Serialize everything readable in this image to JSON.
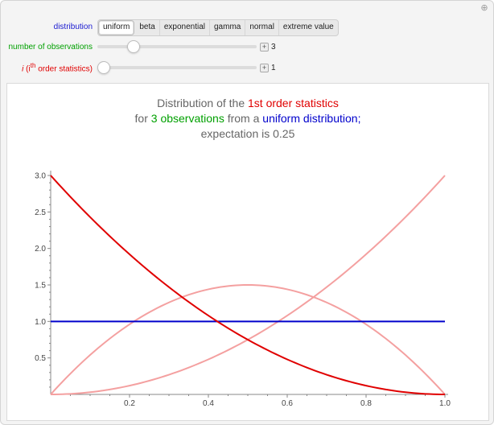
{
  "controls": {
    "distribution": {
      "label": "distribution",
      "options": [
        "uniform",
        "beta",
        "exponential",
        "gamma",
        "normal",
        "extreme value"
      ],
      "selected": "uniform"
    },
    "observations": {
      "label": "number of observations",
      "value": "3",
      "level": 0.2
    },
    "order": {
      "label_i": "i",
      "label_paren": " (i",
      "label_sup": "th",
      "label_rest": " order statistics)",
      "value": "1",
      "level": 0.0
    }
  },
  "title": {
    "line1_prefix": "Distribution of the ",
    "line1_highlight": "1st order statistics",
    "line2_prefix": "for ",
    "line2_green": "3 observations",
    "line2_mid": " from a ",
    "line2_blue": "uniform distribution;",
    "line3": "expectation is 0.25"
  },
  "colors": {
    "red": "#e00000",
    "light_red": "#f4a0a0",
    "blue": "#0000cc",
    "green": "#00a000",
    "label_blue": "#1a1ad0"
  },
  "chart_data": {
    "type": "line",
    "xlim": [
      0,
      1
    ],
    "ylim": [
      0,
      3
    ],
    "xticks": [
      "0.2",
      "0.4",
      "0.6",
      "0.8",
      "1.0"
    ],
    "yticks": [
      "0.5",
      "1.0",
      "1.5",
      "2.0",
      "2.5",
      "3.0"
    ],
    "series": [
      {
        "formula": "3*(1-x)^2",
        "style": "highlight",
        "x": [
          0,
          0.1,
          0.2,
          0.3,
          0.4,
          0.5,
          0.6,
          0.7,
          0.8,
          0.9,
          1.0
        ],
        "values": [
          3.0,
          2.43,
          1.92,
          1.47,
          1.08,
          0.75,
          0.48,
          0.27,
          0.12,
          0.03,
          0.0
        ]
      },
      {
        "formula": "6*x*(1-x)",
        "style": "faded",
        "x": [
          0,
          0.1,
          0.2,
          0.3,
          0.4,
          0.5,
          0.6,
          0.7,
          0.8,
          0.9,
          1.0
        ],
        "values": [
          0.0,
          0.54,
          0.96,
          1.26,
          1.44,
          1.5,
          1.44,
          1.26,
          0.96,
          0.54,
          0.0
        ]
      },
      {
        "formula": "3*x^2",
        "style": "faded",
        "x": [
          0,
          0.1,
          0.2,
          0.3,
          0.4,
          0.5,
          0.6,
          0.7,
          0.8,
          0.9,
          1.0
        ],
        "values": [
          0.0,
          0.03,
          0.12,
          0.27,
          0.48,
          0.75,
          1.08,
          1.47,
          1.92,
          2.43,
          3.0
        ]
      },
      {
        "formula": "uniform pdf",
        "style": "parent",
        "x": [
          0,
          1
        ],
        "values": [
          1,
          1
        ]
      }
    ]
  }
}
